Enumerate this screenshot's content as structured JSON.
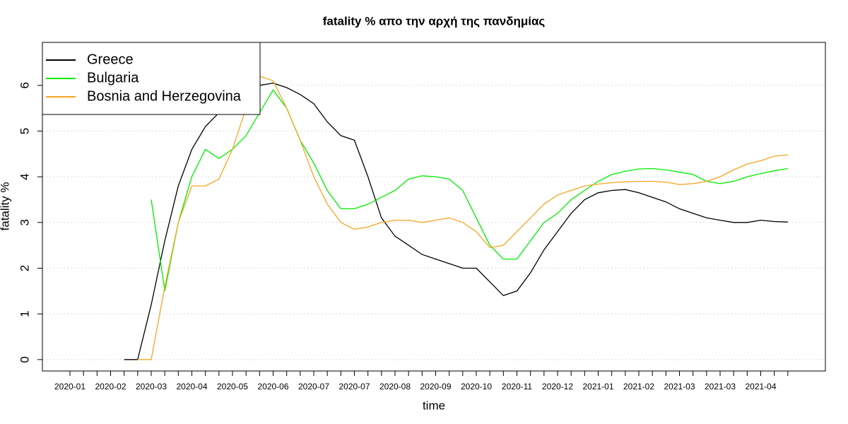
{
  "chart_data": {
    "type": "line",
    "title": "fatality % απο την αρχή της πανδημίας",
    "x_label": "time",
    "y_label": "fatality %",
    "categories": [
      "2020-01",
      null,
      null,
      "2020-02",
      null,
      null,
      "2020-03",
      null,
      null,
      "2020-04",
      null,
      null,
      "2020-05",
      null,
      null,
      "2020-06",
      null,
      null,
      "2020-07",
      null,
      null,
      "2020-07",
      null,
      null,
      "2020-08",
      null,
      null,
      "2020-09",
      null,
      null,
      "2020-10",
      null,
      null,
      "2020-11",
      null,
      null,
      "2020-12",
      null,
      null,
      "2021-01",
      null,
      null,
      "2021-02",
      null,
      null,
      "2021-03",
      null,
      null,
      "2021-03",
      null,
      null,
      "2021-04",
      null,
      null
    ],
    "series": [
      {
        "name": "Greece",
        "color": "#000000",
        "values": [
          null,
          null,
          null,
          null,
          0,
          0,
          1.2,
          2.6,
          3.8,
          4.6,
          5.1,
          5.4,
          5.6,
          5.8,
          6.0,
          6.05,
          5.95,
          5.8,
          5.6,
          5.2,
          4.9,
          4.8,
          4.0,
          3.1,
          2.7,
          2.5,
          2.3,
          2.2,
          2.1,
          2.0,
          2.0,
          1.7,
          1.4,
          1.5,
          1.9,
          2.4,
          2.8,
          3.2,
          3.5,
          3.65,
          3.7,
          3.72,
          3.65,
          3.55,
          3.45,
          3.3,
          3.2,
          3.1,
          3.05,
          3.0,
          3.0,
          3.05,
          3.02,
          3.01
        ]
      },
      {
        "name": "Bulgaria",
        "color": "#00ee00",
        "values": [
          null,
          null,
          null,
          null,
          null,
          null,
          3.5,
          1.5,
          3.0,
          4.0,
          4.6,
          4.4,
          4.6,
          4.9,
          5.4,
          5.9,
          5.5,
          4.8,
          4.3,
          3.7,
          3.3,
          3.3,
          3.4,
          3.55,
          3.7,
          3.95,
          4.02,
          4.0,
          3.95,
          3.7,
          3.1,
          2.5,
          2.2,
          2.2,
          2.6,
          3.0,
          3.2,
          3.5,
          3.7,
          3.9,
          4.05,
          4.12,
          4.17,
          4.18,
          4.15,
          4.1,
          4.05,
          3.9,
          3.85,
          3.9,
          4.0,
          4.07,
          4.13,
          4.18
        ]
      },
      {
        "name": "Bosnia and Herzegovina",
        "color": "#f5a623",
        "values": [
          null,
          null,
          null,
          null,
          null,
          0,
          0,
          1.6,
          3.0,
          3.8,
          3.8,
          3.95,
          4.6,
          5.5,
          6.2,
          6.1,
          5.5,
          4.8,
          4.0,
          3.4,
          3.0,
          2.85,
          2.9,
          3.0,
          3.05,
          3.05,
          3.0,
          3.05,
          3.1,
          3.0,
          2.8,
          2.45,
          2.5,
          2.8,
          3.1,
          3.4,
          3.6,
          3.7,
          3.8,
          3.84,
          3.87,
          3.89,
          3.9,
          3.9,
          3.88,
          3.83,
          3.85,
          3.9,
          4.0,
          4.15,
          4.28,
          4.35,
          4.45,
          4.48
        ]
      }
    ],
    "ylim": [
      -0.25,
      6.94
    ],
    "yticks": [
      0,
      1,
      2,
      3,
      4,
      5,
      6
    ],
    "grid": true,
    "legend": "top-left"
  }
}
